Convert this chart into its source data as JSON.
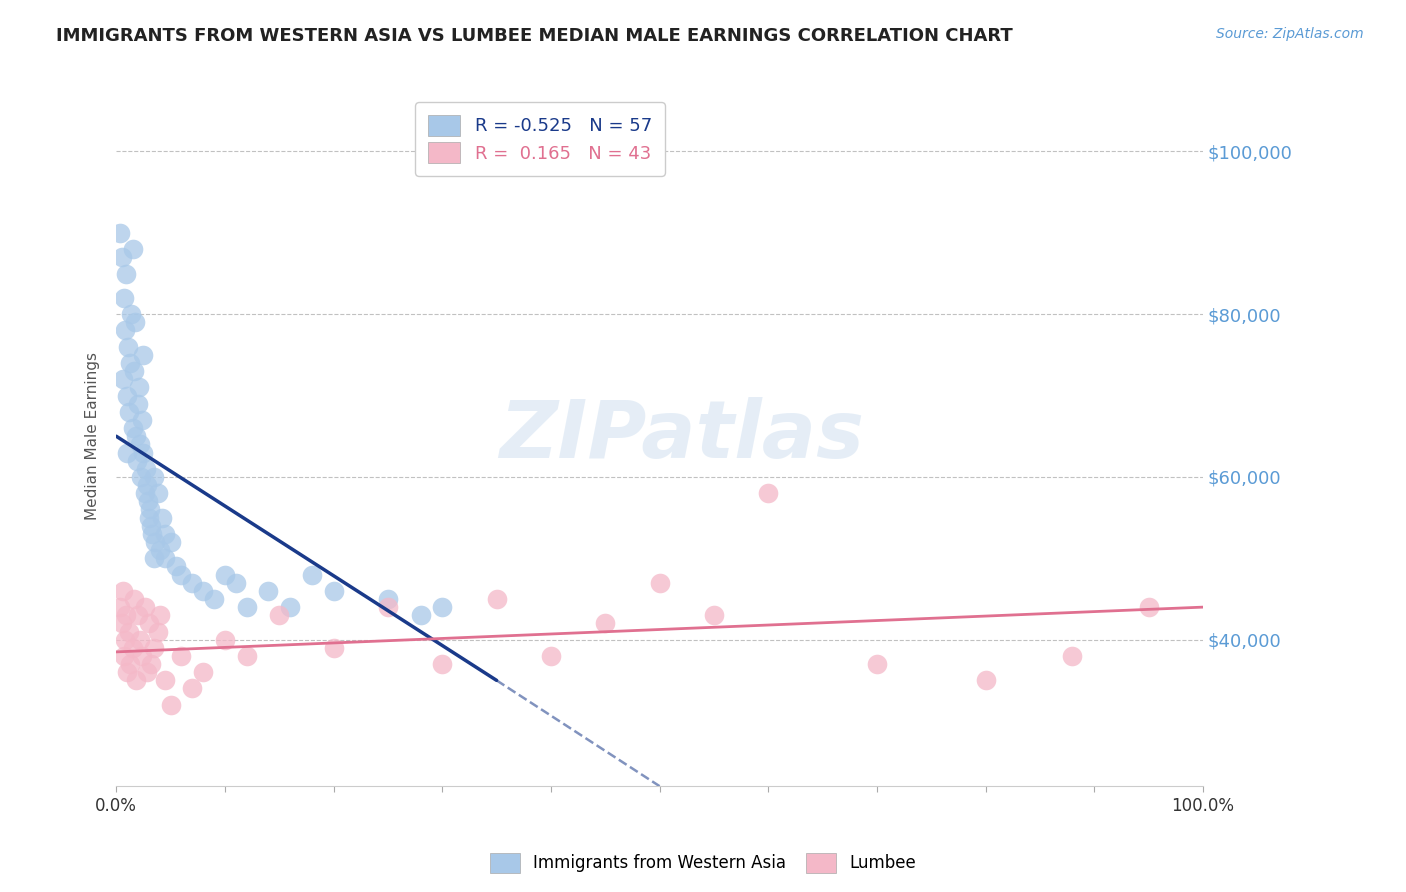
{
  "title": "IMMIGRANTS FROM WESTERN ASIA VS LUMBEE MEDIAN MALE EARNINGS CORRELATION CHART",
  "source_text": "Source: ZipAtlas.com",
  "ylabel": "Median Male Earnings",
  "xlim": [
    0.0,
    100.0
  ],
  "ylim": [
    22000,
    108000
  ],
  "yticks": [
    40000,
    60000,
    80000,
    100000
  ],
  "ytick_labels": [
    "$40,000",
    "$60,000",
    "$80,000",
    "$100,000"
  ],
  "xtick_labels": [
    "0.0%",
    "100.0%"
  ],
  "blue_color": "#a8c8e8",
  "pink_color": "#f4b8c8",
  "blue_line_color": "#1a3a8a",
  "pink_line_color": "#e07090",
  "legend_blue_R": "-0.525",
  "legend_blue_N": "57",
  "legend_pink_R": "0.165",
  "legend_pink_N": "43",
  "watermark": "ZIPatlas",
  "blue_scatter_x": [
    0.3,
    0.5,
    0.6,
    0.7,
    0.8,
    0.9,
    1.0,
    1.0,
    1.1,
    1.2,
    1.3,
    1.4,
    1.5,
    1.6,
    1.7,
    1.8,
    1.9,
    2.0,
    2.1,
    2.2,
    2.3,
    2.4,
    2.5,
    2.6,
    2.7,
    2.8,
    2.9,
    3.0,
    3.1,
    3.2,
    3.3,
    3.5,
    3.6,
    3.8,
    4.0,
    4.2,
    4.5,
    5.0,
    5.5,
    6.0,
    7.0,
    8.0,
    9.0,
    10.0,
    11.0,
    12.0,
    14.0,
    16.0,
    18.0,
    20.0,
    25.0,
    28.0,
    30.0,
    1.5,
    2.5,
    3.5,
    4.5
  ],
  "blue_scatter_y": [
    90000,
    87000,
    72000,
    82000,
    78000,
    85000,
    70000,
    63000,
    76000,
    68000,
    74000,
    80000,
    66000,
    73000,
    79000,
    65000,
    62000,
    69000,
    71000,
    64000,
    60000,
    67000,
    63000,
    58000,
    61000,
    59000,
    57000,
    55000,
    56000,
    54000,
    53000,
    60000,
    52000,
    58000,
    51000,
    55000,
    50000,
    52000,
    49000,
    48000,
    47000,
    46000,
    45000,
    48000,
    47000,
    44000,
    46000,
    44000,
    48000,
    46000,
    45000,
    43000,
    44000,
    88000,
    75000,
    50000,
    53000
  ],
  "pink_scatter_x": [
    0.3,
    0.5,
    0.6,
    0.7,
    0.8,
    0.9,
    1.0,
    1.2,
    1.3,
    1.5,
    1.6,
    1.8,
    2.0,
    2.2,
    2.4,
    2.6,
    2.8,
    3.0,
    3.2,
    3.5,
    3.8,
    4.0,
    4.5,
    5.0,
    6.0,
    7.0,
    8.0,
    10.0,
    12.0,
    15.0,
    20.0,
    25.0,
    30.0,
    35.0,
    40.0,
    45.0,
    50.0,
    55.0,
    60.0,
    70.0,
    80.0,
    88.0,
    95.0
  ],
  "pink_scatter_y": [
    44000,
    42000,
    46000,
    38000,
    40000,
    43000,
    36000,
    41000,
    37000,
    39000,
    45000,
    35000,
    43000,
    40000,
    38000,
    44000,
    36000,
    42000,
    37000,
    39000,
    41000,
    43000,
    35000,
    32000,
    38000,
    34000,
    36000,
    40000,
    38000,
    43000,
    39000,
    44000,
    37000,
    45000,
    38000,
    42000,
    47000,
    43000,
    58000,
    37000,
    35000,
    38000,
    44000
  ],
  "background_color": "#ffffff",
  "grid_color": "#bbbbbb",
  "title_color": "#222222",
  "axis_label_color": "#5b9bd5",
  "source_color": "#5b9bd5",
  "blue_line_x0": 0.0,
  "blue_line_y0": 65000,
  "blue_line_x1": 35.0,
  "blue_line_y1": 35000,
  "blue_dash_x0": 35.0,
  "blue_dash_y0": 35000,
  "blue_dash_x1": 50.0,
  "blue_dash_y1": 22000,
  "pink_line_x0": 0.0,
  "pink_line_y0": 38500,
  "pink_line_x1": 100.0,
  "pink_line_y1": 44000
}
